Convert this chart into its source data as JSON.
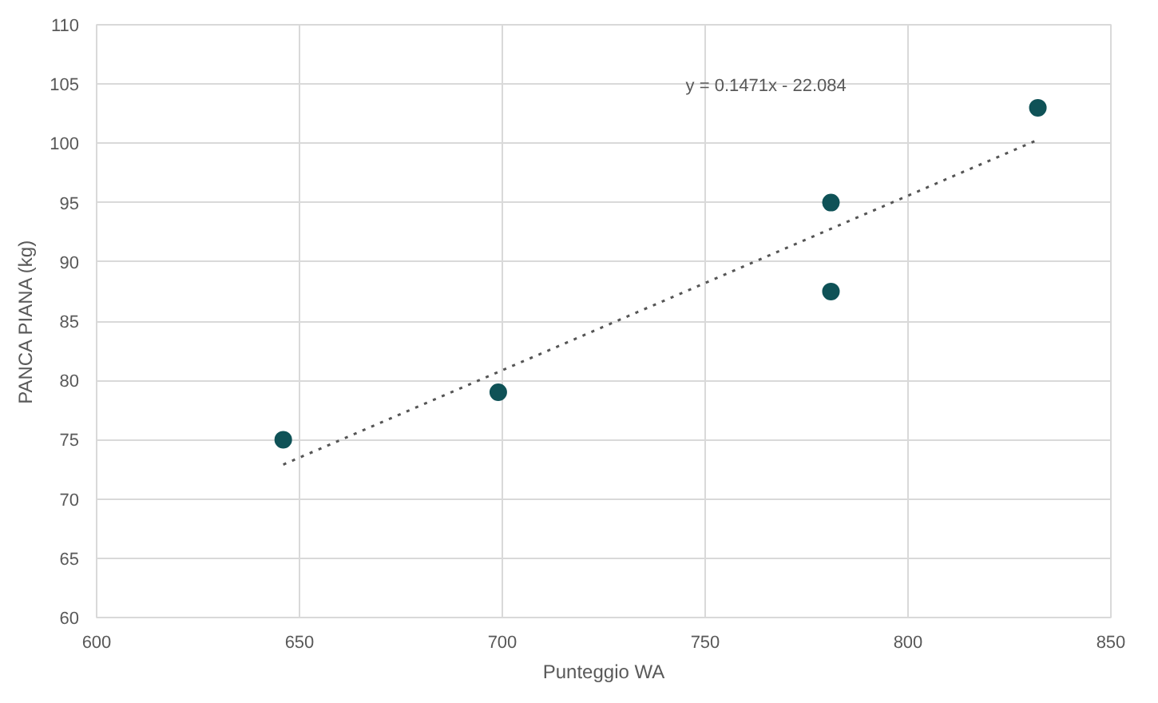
{
  "chart_data": {
    "type": "scatter",
    "xlabel": "Punteggio WA",
    "ylabel": "PANCA PIANA (kg)",
    "series": [
      {
        "color": "#0f5257",
        "marker": "circle",
        "x": [
          646,
          699,
          781,
          781,
          832
        ],
        "values": [
          75,
          79,
          95,
          87.5,
          103
        ]
      },
      {
        "type": "line",
        "color": "#555555",
        "marker": "none",
        "line_style": "dotted",
        "x": [
          646,
          832
        ],
        "values": [
          72.9,
          100.3
        ]
      }
    ],
    "annotations": [
      "y = 0.1471x - 22.084"
    ],
    "xlim": [
      600,
      850
    ],
    "xticks": [
      600,
      650,
      700,
      750,
      800,
      850
    ],
    "ylim": [
      60,
      110
    ],
    "yticks": [
      60,
      65,
      70,
      75,
      80,
      85,
      90,
      95,
      100,
      105,
      110
    ],
    "grid": true
  }
}
